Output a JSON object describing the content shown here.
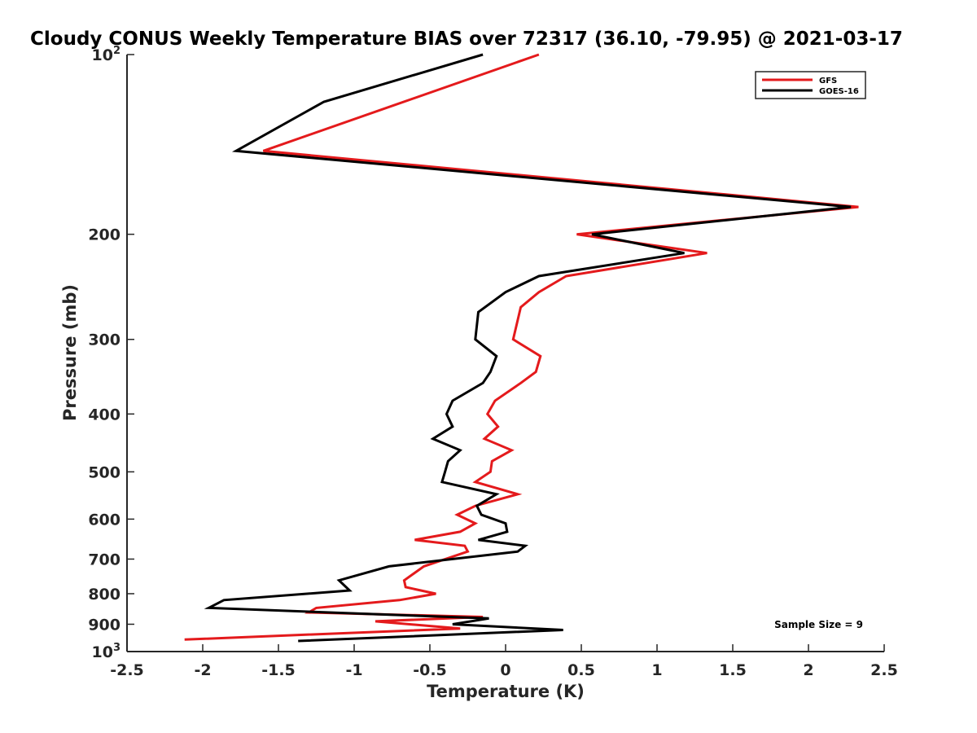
{
  "chart_data": {
    "type": "line",
    "title": "Cloudy CONUS Weekly Temperature BIAS over 72317 (36.10, -79.95) @ 2021-03-17",
    "xlabel": "Temperature (K)",
    "ylabel": "Pressure (mb)",
    "xlim": [
      -2.5,
      2.5
    ],
    "ylim": [
      100,
      1000
    ],
    "yscale": "log",
    "y_reversed": true,
    "grid": false,
    "legend_position": "top-right",
    "x_ticks": [
      {
        "value": -2.5,
        "label": "-2.5"
      },
      {
        "value": -2,
        "label": "-2"
      },
      {
        "value": -1.5,
        "label": "-1.5"
      },
      {
        "value": -1,
        "label": "-1"
      },
      {
        "value": -0.5,
        "label": "-0.5"
      },
      {
        "value": 0,
        "label": "0"
      },
      {
        "value": 0.5,
        "label": "0.5"
      },
      {
        "value": 1,
        "label": "1"
      },
      {
        "value": 1.5,
        "label": "1.5"
      },
      {
        "value": 2,
        "label": "2"
      },
      {
        "value": 2.5,
        "label": "2.5"
      }
    ],
    "y_ticks": [
      {
        "value": 100,
        "base": "10",
        "exp": "2"
      },
      {
        "value": 200,
        "base": "200",
        "exp": ""
      },
      {
        "value": 300,
        "base": "300",
        "exp": ""
      },
      {
        "value": 400,
        "base": "400",
        "exp": ""
      },
      {
        "value": 500,
        "base": "500",
        "exp": ""
      },
      {
        "value": 600,
        "base": "600",
        "exp": ""
      },
      {
        "value": 700,
        "base": "700",
        "exp": ""
      },
      {
        "value": 800,
        "base": "800",
        "exp": ""
      },
      {
        "value": 900,
        "base": "900",
        "exp": ""
      },
      {
        "value": 1000,
        "base": "10",
        "exp": "3"
      }
    ],
    "annotation": "Sample Size = 9",
    "series": [
      {
        "name": "GFS",
        "color": "#e41a1c",
        "x": [
          0.22,
          -1.6,
          2.33,
          0.47,
          1.33,
          0.4,
          0.22,
          0.1,
          0.05,
          0.23,
          0.2,
          0.1,
          -0.07,
          -0.12,
          -0.05,
          -0.14,
          0.04,
          -0.09,
          -0.1,
          -0.2,
          0.08,
          -0.2,
          -0.32,
          -0.2,
          -0.3,
          -0.6,
          -0.27,
          -0.25,
          -0.54,
          -0.67,
          -0.66,
          -0.46,
          -0.7,
          -1.25,
          -1.3,
          -0.15,
          -0.86,
          -0.3,
          -2.12
        ],
        "y": [
          100,
          145,
          180,
          200,
          215,
          235,
          250,
          265,
          300,
          320,
          340,
          355,
          380,
          400,
          420,
          440,
          460,
          480,
          500,
          520,
          545,
          570,
          590,
          610,
          630,
          650,
          665,
          680,
          720,
          760,
          780,
          800,
          820,
          845,
          860,
          875,
          890,
          915,
          955
        ]
      },
      {
        "name": "GOES-16",
        "color": "#000000",
        "x": [
          -0.15,
          -1.2,
          -1.78,
          2.28,
          0.57,
          1.18,
          0.22,
          0.0,
          -0.18,
          -0.2,
          -0.06,
          -0.1,
          -0.15,
          -0.35,
          -0.39,
          -0.35,
          -0.48,
          -0.3,
          -0.38,
          -0.4,
          -0.42,
          -0.06,
          -0.19,
          -0.16,
          0.0,
          0.01,
          -0.18,
          0.13,
          0.08,
          -0.77,
          -1.1,
          -1.03,
          -1.86,
          -1.96,
          -0.11,
          -0.35,
          0.38,
          -1.37
        ],
        "y": [
          100,
          120,
          145,
          180,
          200,
          215,
          235,
          250,
          270,
          300,
          320,
          340,
          355,
          380,
          400,
          420,
          440,
          460,
          480,
          500,
          520,
          545,
          570,
          590,
          610,
          630,
          650,
          665,
          680,
          720,
          760,
          790,
          820,
          845,
          880,
          900,
          920,
          960
        ]
      }
    ]
  }
}
